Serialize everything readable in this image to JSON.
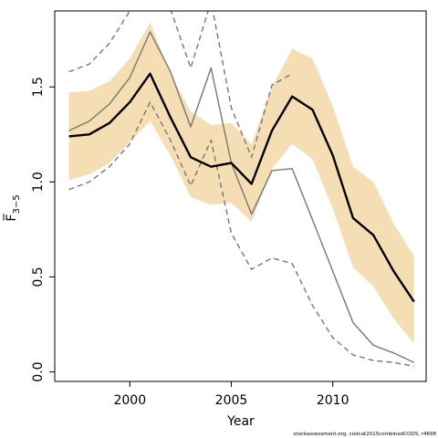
{
  "chart_data": {
    "type": "line",
    "xlabel": "Year",
    "ylabel": "F̅",
    "ylabel_sub": "3−5",
    "footer": "stockassessment.org, codcat2015combinedCODS, r4698",
    "xlim": [
      1996.3,
      2014.6
    ],
    "ylim": [
      -0.05,
      1.9
    ],
    "x_ticks": [
      {
        "value": 2000,
        "label": "2000"
      },
      {
        "value": 2005,
        "label": "2005"
      },
      {
        "value": 2010,
        "label": "2010"
      }
    ],
    "y_ticks": [
      {
        "value": 0.0,
        "label": "0.0"
      },
      {
        "value": 0.5,
        "label": "0.5"
      },
      {
        "value": 1.0,
        "label": "1.0"
      },
      {
        "value": 1.5,
        "label": "1.5"
      }
    ],
    "x": [
      1997,
      1998,
      1999,
      2000,
      2001,
      2002,
      2003,
      2004,
      2005,
      2006,
      2007,
      2008,
      2009,
      2010,
      2011,
      2012,
      2013,
      2014
    ],
    "colors": {
      "band": "#f5deb3",
      "estimate": "#000000",
      "retro": "#777777",
      "retro_ci": "#777777",
      "frame": "#000000"
    },
    "series": [
      {
        "role": "band",
        "lower": [
          1.01,
          1.04,
          1.1,
          1.21,
          1.32,
          1.14,
          0.92,
          0.88,
          0.89,
          0.79,
          1.07,
          1.2,
          1.12,
          0.86,
          0.55,
          0.45,
          0.28,
          0.15
        ],
        "upper": [
          1.47,
          1.48,
          1.53,
          1.65,
          1.84,
          1.57,
          1.37,
          1.3,
          1.31,
          1.2,
          1.5,
          1.7,
          1.65,
          1.4,
          1.08,
          1.0,
          0.78,
          0.61
        ]
      },
      {
        "role": "estimate",
        "values": [
          1.24,
          1.25,
          1.31,
          1.42,
          1.57,
          1.34,
          1.13,
          1.08,
          1.1,
          0.99,
          1.27,
          1.45,
          1.38,
          1.14,
          0.81,
          0.72,
          0.53,
          0.37
        ]
      },
      {
        "role": "retro",
        "values": [
          1.27,
          1.32,
          1.41,
          1.55,
          1.79,
          1.58,
          1.29,
          1.6,
          1.1,
          0.83,
          1.06,
          1.07,
          null,
          null,
          0.26,
          0.14,
          0.1,
          0.05
        ]
      },
      {
        "role": "retro_ci_upper",
        "values": [
          1.58,
          1.62,
          1.73,
          1.9,
          null,
          1.91,
          1.6,
          1.95,
          1.39,
          1.13,
          1.51,
          1.57,
          null,
          null,
          null,
          null,
          null,
          null
        ]
      },
      {
        "role": "retro_ci_lower",
        "values": [
          0.96,
          1.0,
          1.08,
          1.2,
          1.42,
          1.22,
          0.98,
          1.22,
          0.73,
          0.54,
          0.6,
          0.57,
          0.35,
          0.18,
          0.09,
          0.06,
          0.05,
          0.03
        ]
      }
    ]
  }
}
